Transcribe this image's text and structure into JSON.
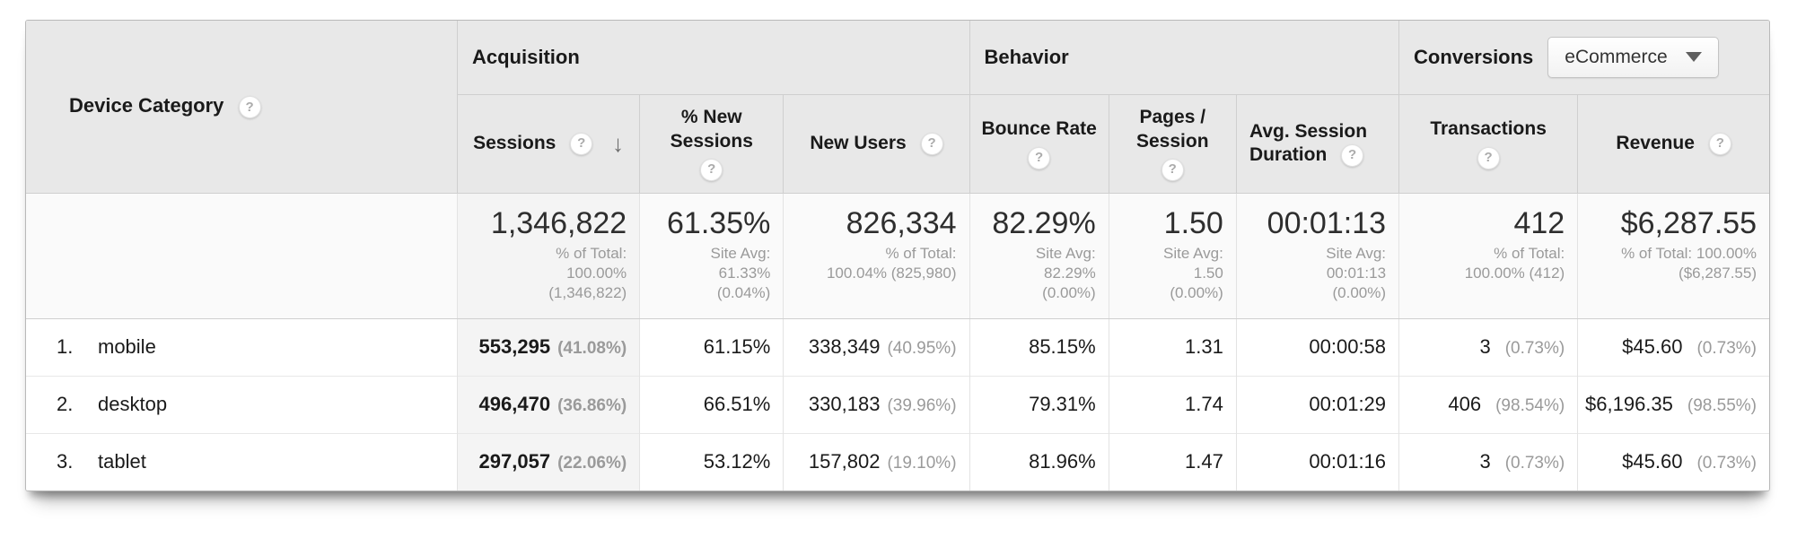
{
  "table": {
    "device_category": {
      "label": "Device Category"
    },
    "groups": {
      "acquisition": "Acquisition",
      "behavior": "Behavior",
      "conversions": "Conversions"
    },
    "conversions_selector": {
      "value": "eCommerce"
    },
    "columns": {
      "sessions": "Sessions",
      "pct_new_sessions": "% New Sessions",
      "new_users": "New Users",
      "bounce_rate": "Bounce Rate",
      "pages_session": "Pages / Session",
      "avg_session_duration": "Avg. Session Duration",
      "transactions": "Transactions",
      "revenue": "Revenue"
    },
    "help_glyph": "?",
    "sort_indicator": "↓",
    "summary": {
      "sessions": {
        "value": "1,346,822",
        "sub": [
          "% of Total:",
          "100.00%",
          "(1,346,822)"
        ]
      },
      "pct_new_sessions": {
        "value": "61.35%",
        "sub": [
          "Site Avg:",
          "61.33%",
          "(0.04%)"
        ]
      },
      "new_users": {
        "value": "826,334",
        "sub": [
          "% of Total:",
          "100.04% (825,980)"
        ]
      },
      "bounce_rate": {
        "value": "82.29%",
        "sub": [
          "Site Avg:",
          "82.29%",
          "(0.00%)"
        ]
      },
      "pages_session": {
        "value": "1.50",
        "sub": [
          "Site Avg:",
          "1.50",
          "(0.00%)"
        ]
      },
      "avg_session_duration": {
        "value": "00:01:13",
        "sub": [
          "Site Avg:",
          "00:01:13",
          "(0.00%)"
        ]
      },
      "transactions": {
        "value": "412",
        "sub": [
          "% of Total:",
          "100.00% (412)"
        ]
      },
      "revenue": {
        "value": "$6,287.55",
        "sub": [
          "% of Total: 100.00%",
          "($6,287.55)"
        ]
      }
    },
    "rows": [
      {
        "rank": "1.",
        "name": "mobile",
        "sessions": "553,295",
        "sessions_pct": "(41.08%)",
        "pct_new_sessions": "61.15%",
        "new_users": "338,349",
        "new_users_pct": "(40.95%)",
        "bounce_rate": "85.15%",
        "pages_session": "1.31",
        "avg_session_duration": "00:00:58",
        "transactions": "3",
        "transactions_pct": "(0.73%)",
        "revenue": "$45.60",
        "revenue_pct": "(0.73%)"
      },
      {
        "rank": "2.",
        "name": "desktop",
        "sessions": "496,470",
        "sessions_pct": "(36.86%)",
        "pct_new_sessions": "66.51%",
        "new_users": "330,183",
        "new_users_pct": "(39.96%)",
        "bounce_rate": "79.31%",
        "pages_session": "1.74",
        "avg_session_duration": "00:01:29",
        "transactions": "406",
        "transactions_pct": "(98.54%)",
        "revenue": "$6,196.35",
        "revenue_pct": "(98.55%)"
      },
      {
        "rank": "3.",
        "name": "tablet",
        "sessions": "297,057",
        "sessions_pct": "(22.06%)",
        "pct_new_sessions": "53.12%",
        "new_users": "157,802",
        "new_users_pct": "(19.10%)",
        "bounce_rate": "81.96%",
        "pages_session": "1.47",
        "avg_session_duration": "00:01:16",
        "transactions": "3",
        "transactions_pct": "(0.73%)",
        "revenue": "$45.60",
        "revenue_pct": "(0.73%)"
      }
    ]
  }
}
